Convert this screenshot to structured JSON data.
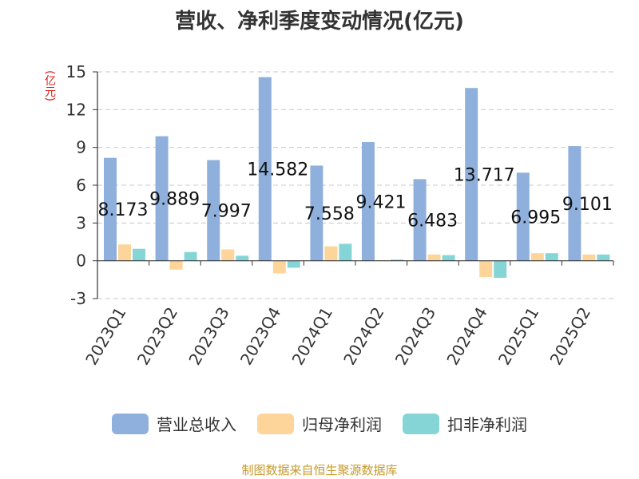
{
  "title": "营收、净利季度变动情况(亿元)",
  "source": "制图数据来自恒生聚源数据库",
  "chart_data": {
    "type": "bar",
    "title": "营收、净利季度变动情况(亿元)",
    "ylabel": "(亿元)",
    "xlabel": "",
    "ylim": [
      -3,
      15
    ],
    "yticks": [
      -3,
      0,
      3,
      6,
      9,
      12,
      15
    ],
    "grid": true,
    "legend_position": "bottom",
    "categories": [
      "2023Q1",
      "2023Q2",
      "2023Q3",
      "2023Q4",
      "2024Q1",
      "2024Q2",
      "2024Q3",
      "2024Q4",
      "2025Q1",
      "2025Q2"
    ],
    "series": [
      {
        "name": "营业总收入",
        "color": "#8fb0dc",
        "values": [
          8.173,
          9.889,
          7.997,
          14.582,
          7.558,
          9.421,
          6.483,
          13.717,
          6.995,
          9.101
        ],
        "labels": [
          "8.173",
          "9.889",
          "7.997",
          "14.582",
          "7.558",
          "9.421",
          "6.483",
          "13.717",
          "6.995",
          "9.101"
        ]
      },
      {
        "name": "归母净利润",
        "color": "#fdd59a",
        "values": [
          1.3,
          -0.7,
          0.9,
          -1.0,
          1.15,
          0.05,
          0.5,
          -1.3,
          0.6,
          0.5
        ]
      },
      {
        "name": "扣非净利润",
        "color": "#86d5d6",
        "values": [
          0.95,
          0.7,
          0.4,
          -0.55,
          1.35,
          0.1,
          0.45,
          -1.35,
          0.6,
          0.5
        ]
      }
    ]
  }
}
